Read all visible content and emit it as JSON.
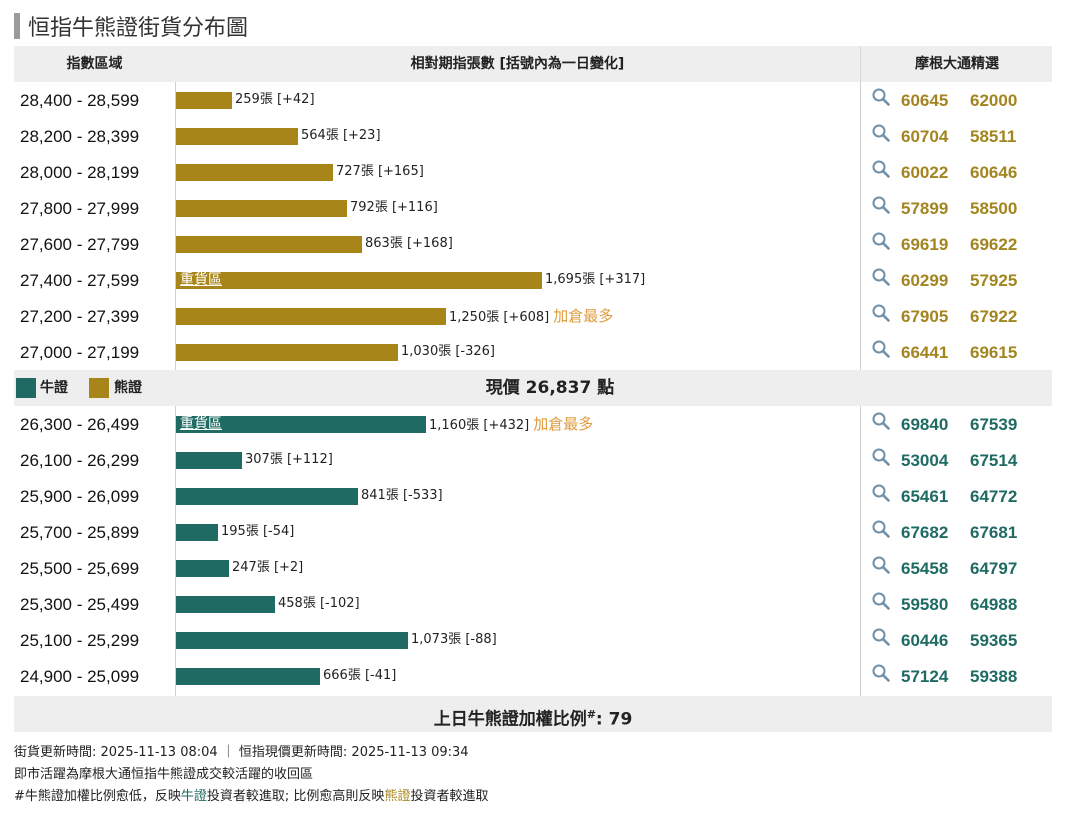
{
  "page_title": "恒指牛熊證街貨分布圖",
  "header": {
    "col_range": "指數區域",
    "col_count": "相對期指張數 [括號內為一日變化]",
    "col_picks": "摩根大通精選"
  },
  "colors": {
    "bear": "#a88518",
    "bull": "#1f6b63",
    "highlight": "#e09b3c",
    "bear_code": "#a38520",
    "bull_code": "#1f6b63"
  },
  "icon_search": "search-icon",
  "bear_rows": [
    {
      "range": "28,400 - 28,599",
      "contracts": 259,
      "label": "259張 [+42]",
      "codes": [
        "60645",
        "62000"
      ]
    },
    {
      "range": "28,200 - 28,399",
      "contracts": 564,
      "label": "564張 [+23]",
      "codes": [
        "60704",
        "58511"
      ]
    },
    {
      "range": "28,000 - 28,199",
      "contracts": 727,
      "label": "727張 [+165]",
      "codes": [
        "60022",
        "60646"
      ]
    },
    {
      "range": "27,800 - 27,999",
      "contracts": 792,
      "label": "792張 [+116]",
      "codes": [
        "57899",
        "58500"
      ]
    },
    {
      "range": "27,600 - 27,799",
      "contracts": 863,
      "label": "863張 [+168]",
      "codes": [
        "69619",
        "69622"
      ]
    },
    {
      "range": "27,400 - 27,599",
      "contracts": 1695,
      "label": "1,695張 [+317]",
      "heavy": "重貨區",
      "codes": [
        "60299",
        "57925"
      ]
    },
    {
      "range": "27,200 - 27,399",
      "contracts": 1250,
      "label": "1,250張 [+608]",
      "tag": "加倉最多",
      "codes": [
        "67905",
        "67922"
      ]
    },
    {
      "range": "27,000 - 27,199",
      "contracts": 1030,
      "label": "1,030張 [-326]",
      "codes": [
        "66441",
        "69615"
      ]
    }
  ],
  "legend": {
    "bull": "牛證",
    "bear": "熊證"
  },
  "current_price": "現價 26,837 點",
  "bull_rows": [
    {
      "range": "26,300 - 26,499",
      "contracts": 1160,
      "label": "1,160張 [+432]",
      "heavy": "重貨區",
      "tag": "加倉最多",
      "codes": [
        "69840",
        "67539"
      ]
    },
    {
      "range": "26,100 - 26,299",
      "contracts": 307,
      "label": "307張 [+112]",
      "codes": [
        "53004",
        "67514"
      ]
    },
    {
      "range": "25,900 - 26,099",
      "contracts": 841,
      "label": "841張 [-533]",
      "codes": [
        "65461",
        "64772"
      ]
    },
    {
      "range": "25,700 - 25,899",
      "contracts": 195,
      "label": "195張 [-54]",
      "codes": [
        "67682",
        "67681"
      ]
    },
    {
      "range": "25,500 - 25,699",
      "contracts": 247,
      "label": "247張 [+2]",
      "codes": [
        "65458",
        "64797"
      ]
    },
    {
      "range": "25,300 - 25,499",
      "contracts": 458,
      "label": "458張 [-102]",
      "codes": [
        "59580",
        "64988"
      ]
    },
    {
      "range": "25,100 - 25,299",
      "contracts": 1073,
      "label": "1,073張 [-88]",
      "codes": [
        "60446",
        "59365"
      ]
    },
    {
      "range": "24,900 - 25,099",
      "contracts": 666,
      "label": "666張 [-41]",
      "codes": [
        "57124",
        "59388"
      ]
    }
  ],
  "ratio": {
    "label": "上日牛熊證加權比例",
    "mark": "#",
    "value": ": 79"
  },
  "notes": {
    "line1": "街貨更新時間: 2025-11-13 08:04 ｜ 恒指現價更新時間: 2025-11-13 09:34",
    "line2": "即市活躍為摩根大通恒指牛熊證成交較活躍的收回區",
    "line3_a": "#牛熊證加權比例愈低，反映",
    "line3_bull": "牛證",
    "line3_b": "投資者較進取; 比例愈高則反映",
    "line3_bear": "熊證",
    "line3_c": "投資者較進取"
  }
}
